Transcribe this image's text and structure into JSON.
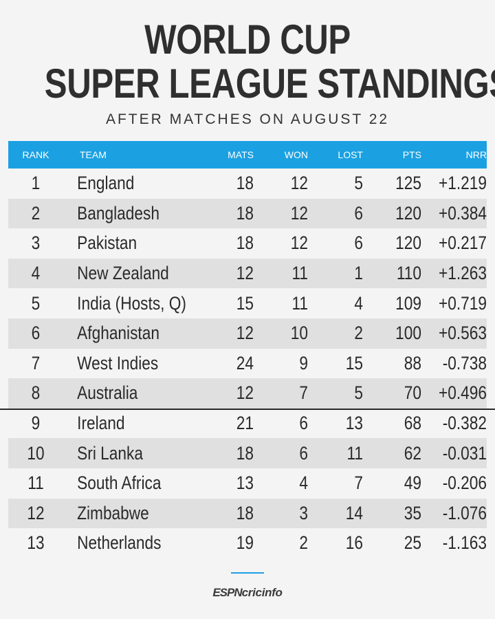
{
  "title_line1": "WORLD CUP",
  "title_line2": "SUPER LEAGUE STANDINGS",
  "subtitle": "AFTER MATCHES ON AUGUST 22",
  "columns": {
    "rank": "RANK",
    "team": "TEAM",
    "mats": "MATS",
    "won": "WON",
    "lost": "LOST",
    "pts": "PTS",
    "nrr": "NRR"
  },
  "rows": [
    {
      "rank": "1",
      "team": "England",
      "mats": "18",
      "won": "12",
      "lost": "5",
      "pts": "125",
      "nrr": "+1.219"
    },
    {
      "rank": "2",
      "team": "Bangladesh",
      "mats": "18",
      "won": "12",
      "lost": "6",
      "pts": "120",
      "nrr": "+0.384"
    },
    {
      "rank": "3",
      "team": "Pakistan",
      "mats": "18",
      "won": "12",
      "lost": "6",
      "pts": "120",
      "nrr": "+0.217"
    },
    {
      "rank": "4",
      "team": "New Zealand",
      "mats": "12",
      "won": "11",
      "lost": "1",
      "pts": "110",
      "nrr": "+1.263"
    },
    {
      "rank": "5",
      "team": "India (Hosts, Q)",
      "mats": "15",
      "won": "11",
      "lost": "4",
      "pts": "109",
      "nrr": "+0.719"
    },
    {
      "rank": "6",
      "team": "Afghanistan",
      "mats": "12",
      "won": "10",
      "lost": "2",
      "pts": "100",
      "nrr": "+0.563"
    },
    {
      "rank": "7",
      "team": "West Indies",
      "mats": "24",
      "won": "9",
      "lost": "15",
      "pts": "88",
      "nrr": "-0.738"
    },
    {
      "rank": "8",
      "team": "Australia",
      "mats": "12",
      "won": "7",
      "lost": "5",
      "pts": "70",
      "nrr": "+0.496"
    },
    {
      "rank": "9",
      "team": "Ireland",
      "mats": "21",
      "won": "6",
      "lost": "13",
      "pts": "68",
      "nrr": "-0.382"
    },
    {
      "rank": "10",
      "team": "Sri Lanka",
      "mats": "18",
      "won": "6",
      "lost": "11",
      "pts": "62",
      "nrr": "-0.031"
    },
    {
      "rank": "11",
      "team": "South Africa",
      "mats": "13",
      "won": "4",
      "lost": "7",
      "pts": "49",
      "nrr": "-0.206"
    },
    {
      "rank": "12",
      "team": "Zimbabwe",
      "mats": "18",
      "won": "3",
      "lost": "14",
      "pts": "35",
      "nrr": "-1.076"
    },
    {
      "rank": "13",
      "team": "Netherlands",
      "mats": "19",
      "won": "2",
      "lost": "16",
      "pts": "25",
      "nrr": "-1.163"
    }
  ],
  "brand": {
    "part1": "ESPN",
    "part2": "cricinfo"
  },
  "colors": {
    "accent": "#1ba1e2",
    "alt_row": "#e0e0e0",
    "background": "#f4f4f4"
  }
}
